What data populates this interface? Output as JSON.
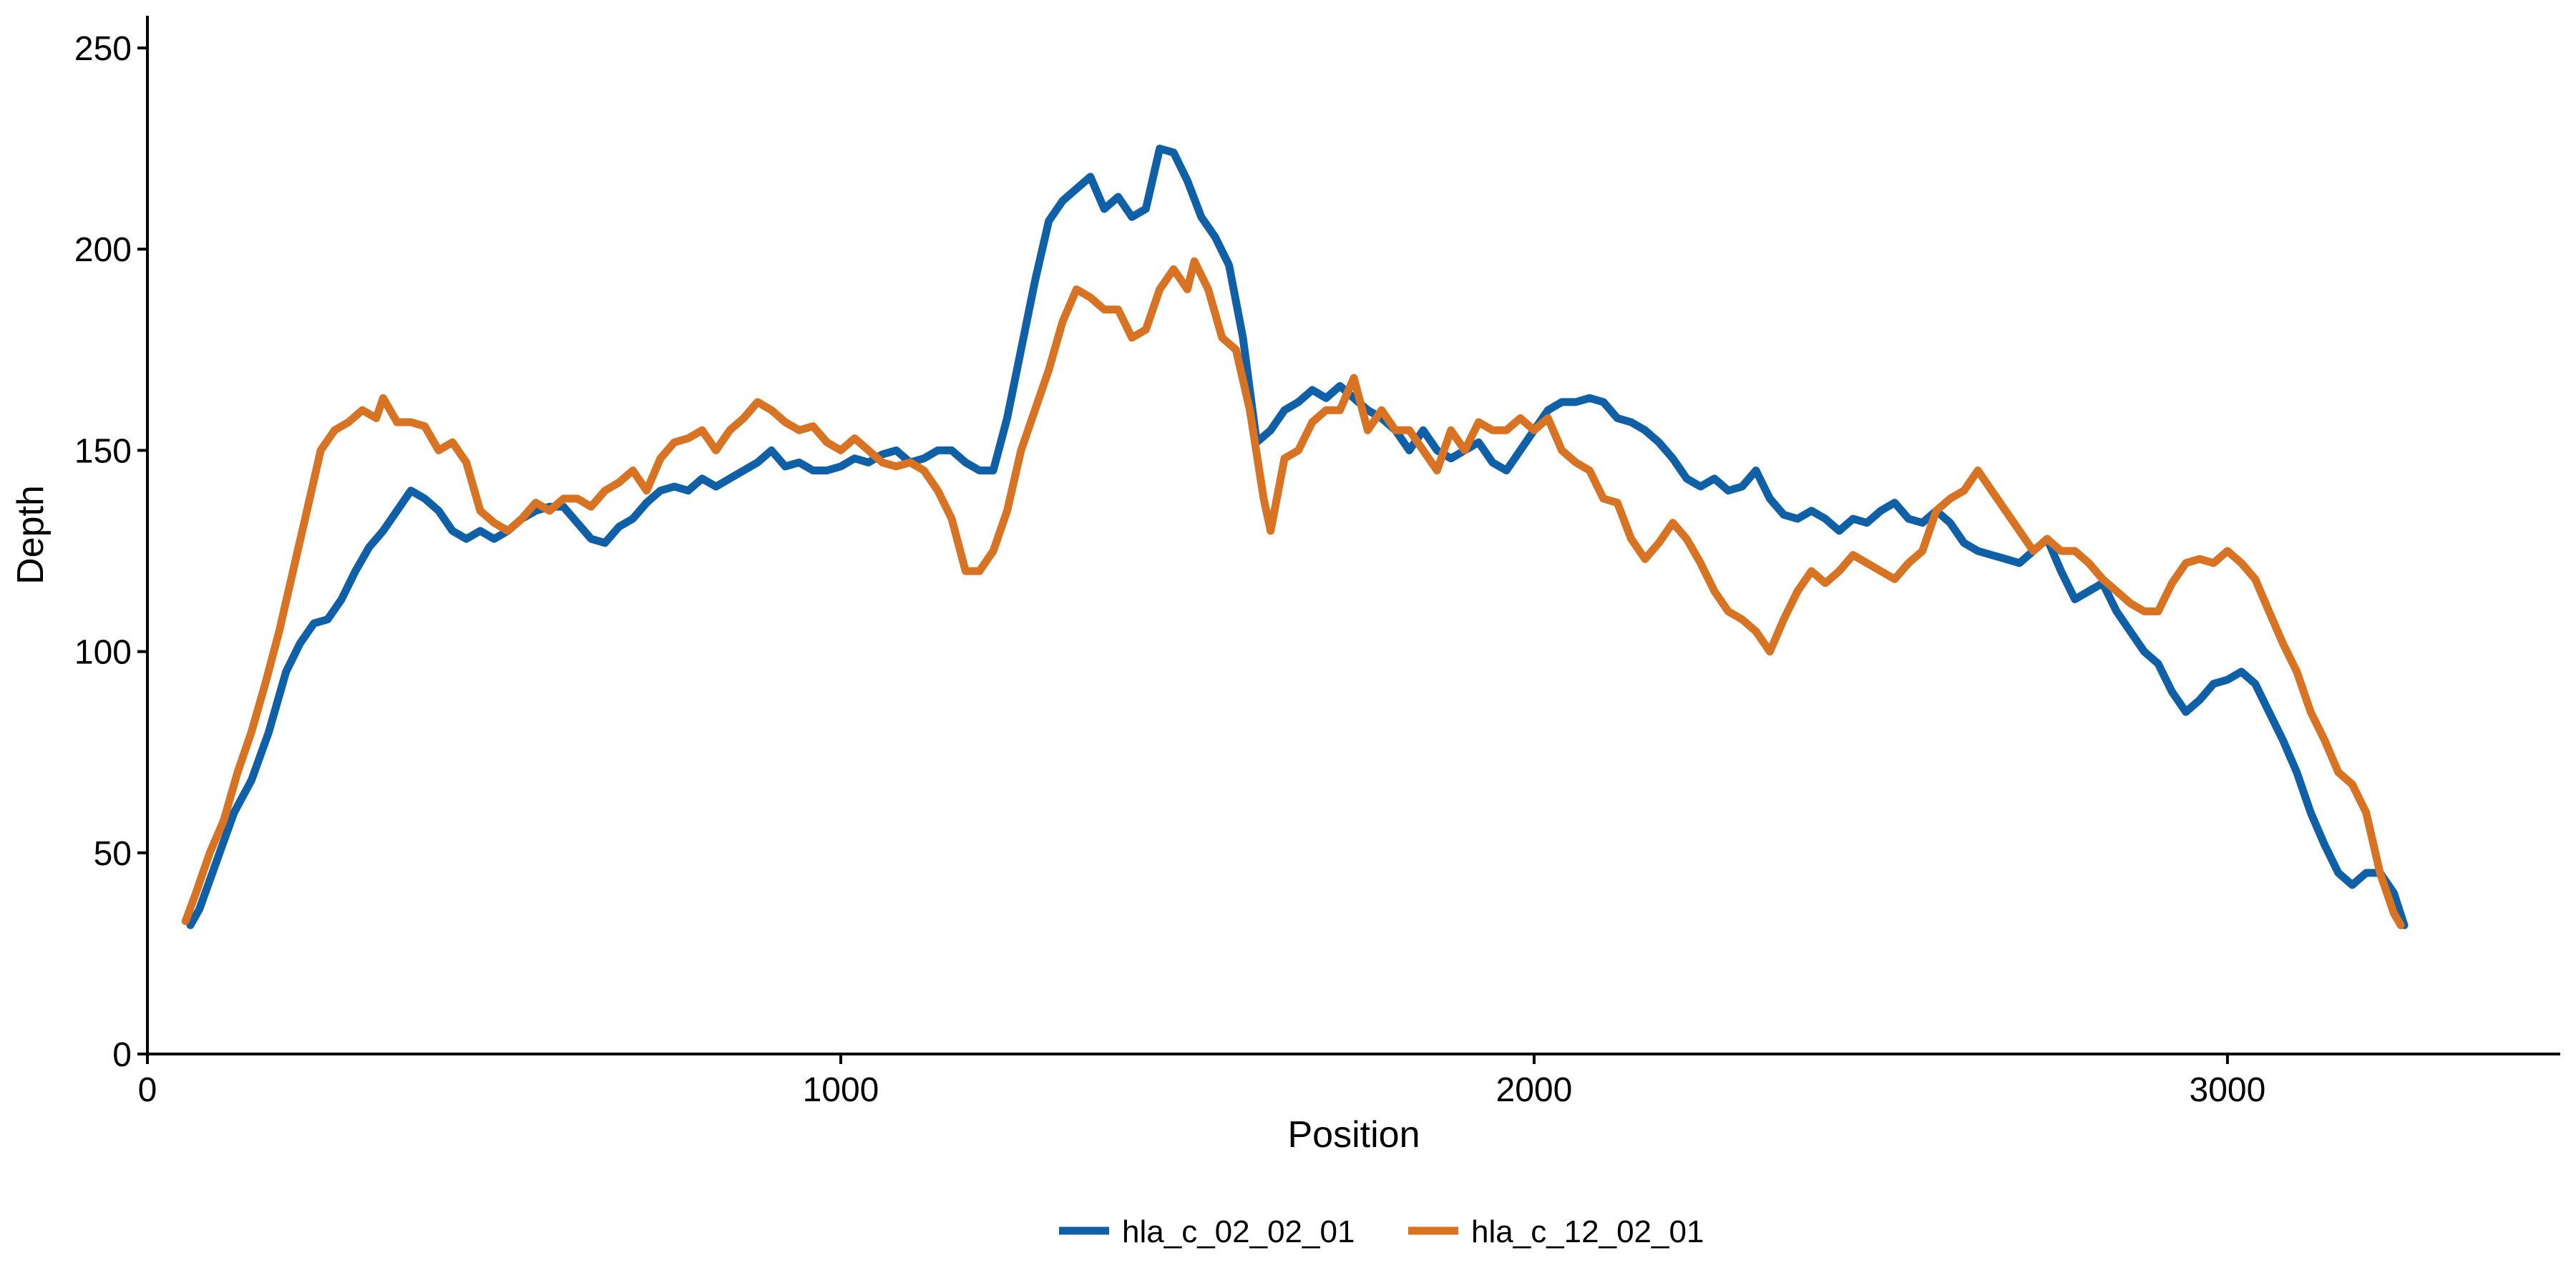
{
  "chart_data": {
    "type": "line",
    "xlabel": "Position",
    "ylabel": "Depth",
    "xlim": [
      0,
      3480
    ],
    "ylim": [
      0,
      258
    ],
    "xticks": [
      0,
      1000,
      2000,
      3000
    ],
    "xtick_labels": [
      "0",
      "1000",
      "2000",
      "3000"
    ],
    "yticks": [
      0,
      50,
      100,
      150,
      200,
      250
    ],
    "ytick_labels": [
      "0",
      "50",
      "100",
      "150",
      "200",
      "250"
    ],
    "grid": false,
    "legend_position": "bottom",
    "series": [
      {
        "name": "hla_c_02_02_01",
        "color": "#1060a8",
        "points": [
          [
            62,
            32
          ],
          [
            75,
            36
          ],
          [
            100,
            48
          ],
          [
            125,
            60
          ],
          [
            150,
            68
          ],
          [
            175,
            80
          ],
          [
            200,
            95
          ],
          [
            220,
            102
          ],
          [
            240,
            107
          ],
          [
            260,
            108
          ],
          [
            280,
            113
          ],
          [
            300,
            120
          ],
          [
            320,
            126
          ],
          [
            340,
            130
          ],
          [
            360,
            135
          ],
          [
            380,
            140
          ],
          [
            400,
            138
          ],
          [
            420,
            135
          ],
          [
            440,
            130
          ],
          [
            460,
            128
          ],
          [
            480,
            130
          ],
          [
            500,
            128
          ],
          [
            520,
            130
          ],
          [
            540,
            133
          ],
          [
            560,
            135
          ],
          [
            580,
            136
          ],
          [
            600,
            136
          ],
          [
            620,
            132
          ],
          [
            640,
            128
          ],
          [
            660,
            127
          ],
          [
            680,
            131
          ],
          [
            700,
            133
          ],
          [
            720,
            137
          ],
          [
            740,
            140
          ],
          [
            760,
            141
          ],
          [
            780,
            140
          ],
          [
            800,
            143
          ],
          [
            820,
            141
          ],
          [
            840,
            143
          ],
          [
            860,
            145
          ],
          [
            880,
            147
          ],
          [
            900,
            150
          ],
          [
            920,
            146
          ],
          [
            940,
            147
          ],
          [
            960,
            145
          ],
          [
            980,
            145
          ],
          [
            1000,
            146
          ],
          [
            1020,
            148
          ],
          [
            1040,
            147
          ],
          [
            1060,
            149
          ],
          [
            1080,
            150
          ],
          [
            1100,
            147
          ],
          [
            1120,
            148
          ],
          [
            1140,
            150
          ],
          [
            1160,
            150
          ],
          [
            1180,
            147
          ],
          [
            1200,
            145
          ],
          [
            1220,
            145
          ],
          [
            1240,
            158
          ],
          [
            1260,
            175
          ],
          [
            1280,
            192
          ],
          [
            1300,
            207
          ],
          [
            1320,
            212
          ],
          [
            1340,
            215
          ],
          [
            1360,
            218
          ],
          [
            1380,
            210
          ],
          [
            1400,
            213
          ],
          [
            1420,
            208
          ],
          [
            1440,
            210
          ],
          [
            1460,
            225
          ],
          [
            1480,
            224
          ],
          [
            1500,
            217
          ],
          [
            1520,
            208
          ],
          [
            1540,
            203
          ],
          [
            1560,
            196
          ],
          [
            1580,
            178
          ],
          [
            1600,
            152
          ],
          [
            1620,
            155
          ],
          [
            1640,
            160
          ],
          [
            1660,
            162
          ],
          [
            1680,
            165
          ],
          [
            1700,
            163
          ],
          [
            1720,
            166
          ],
          [
            1740,
            163
          ],
          [
            1760,
            160
          ],
          [
            1780,
            158
          ],
          [
            1800,
            155
          ],
          [
            1820,
            150
          ],
          [
            1840,
            155
          ],
          [
            1860,
            150
          ],
          [
            1880,
            148
          ],
          [
            1900,
            150
          ],
          [
            1920,
            152
          ],
          [
            1940,
            147
          ],
          [
            1960,
            145
          ],
          [
            1980,
            150
          ],
          [
            2000,
            155
          ],
          [
            2020,
            160
          ],
          [
            2040,
            162
          ],
          [
            2060,
            162
          ],
          [
            2080,
            163
          ],
          [
            2100,
            162
          ],
          [
            2120,
            158
          ],
          [
            2140,
            157
          ],
          [
            2160,
            155
          ],
          [
            2180,
            152
          ],
          [
            2200,
            148
          ],
          [
            2220,
            143
          ],
          [
            2240,
            141
          ],
          [
            2260,
            143
          ],
          [
            2280,
            140
          ],
          [
            2300,
            141
          ],
          [
            2320,
            145
          ],
          [
            2340,
            138
          ],
          [
            2360,
            134
          ],
          [
            2380,
            133
          ],
          [
            2400,
            135
          ],
          [
            2420,
            133
          ],
          [
            2440,
            130
          ],
          [
            2460,
            133
          ],
          [
            2480,
            132
          ],
          [
            2500,
            135
          ],
          [
            2520,
            137
          ],
          [
            2540,
            133
          ],
          [
            2560,
            132
          ],
          [
            2580,
            135
          ],
          [
            2600,
            132
          ],
          [
            2620,
            127
          ],
          [
            2640,
            125
          ],
          [
            2660,
            124
          ],
          [
            2680,
            123
          ],
          [
            2700,
            122
          ],
          [
            2720,
            125
          ],
          [
            2740,
            128
          ],
          [
            2760,
            120
          ],
          [
            2780,
            113
          ],
          [
            2800,
            115
          ],
          [
            2820,
            117
          ],
          [
            2840,
            110
          ],
          [
            2860,
            105
          ],
          [
            2880,
            100
          ],
          [
            2900,
            97
          ],
          [
            2920,
            90
          ],
          [
            2940,
            85
          ],
          [
            2960,
            88
          ],
          [
            2980,
            92
          ],
          [
            3000,
            93
          ],
          [
            3020,
            95
          ],
          [
            3040,
            92
          ],
          [
            3060,
            85
          ],
          [
            3080,
            78
          ],
          [
            3100,
            70
          ],
          [
            3120,
            60
          ],
          [
            3140,
            52
          ],
          [
            3160,
            45
          ],
          [
            3180,
            42
          ],
          [
            3200,
            45
          ],
          [
            3220,
            45
          ],
          [
            3240,
            40
          ],
          [
            3255,
            32
          ]
        ]
      },
      {
        "name": "hla_c_12_02_01",
        "color": "#d77322",
        "points": [
          [
            55,
            33
          ],
          [
            70,
            40
          ],
          [
            90,
            50
          ],
          [
            110,
            58
          ],
          [
            130,
            70
          ],
          [
            150,
            80
          ],
          [
            170,
            92
          ],
          [
            190,
            105
          ],
          [
            210,
            120
          ],
          [
            230,
            135
          ],
          [
            250,
            150
          ],
          [
            270,
            155
          ],
          [
            290,
            157
          ],
          [
            310,
            160
          ],
          [
            330,
            158
          ],
          [
            340,
            163
          ],
          [
            360,
            157
          ],
          [
            380,
            157
          ],
          [
            400,
            156
          ],
          [
            420,
            150
          ],
          [
            440,
            152
          ],
          [
            460,
            147
          ],
          [
            480,
            135
          ],
          [
            500,
            132
          ],
          [
            520,
            130
          ],
          [
            540,
            133
          ],
          [
            560,
            137
          ],
          [
            580,
            135
          ],
          [
            600,
            138
          ],
          [
            620,
            138
          ],
          [
            640,
            136
          ],
          [
            660,
            140
          ],
          [
            680,
            142
          ],
          [
            700,
            145
          ],
          [
            720,
            140
          ],
          [
            740,
            148
          ],
          [
            760,
            152
          ],
          [
            780,
            153
          ],
          [
            800,
            155
          ],
          [
            820,
            150
          ],
          [
            840,
            155
          ],
          [
            860,
            158
          ],
          [
            880,
            162
          ],
          [
            900,
            160
          ],
          [
            920,
            157
          ],
          [
            940,
            155
          ],
          [
            960,
            156
          ],
          [
            980,
            152
          ],
          [
            1000,
            150
          ],
          [
            1020,
            153
          ],
          [
            1040,
            150
          ],
          [
            1060,
            147
          ],
          [
            1080,
            146
          ],
          [
            1100,
            147
          ],
          [
            1120,
            145
          ],
          [
            1140,
            140
          ],
          [
            1160,
            133
          ],
          [
            1180,
            120
          ],
          [
            1200,
            120
          ],
          [
            1220,
            125
          ],
          [
            1240,
            135
          ],
          [
            1260,
            150
          ],
          [
            1280,
            160
          ],
          [
            1300,
            170
          ],
          [
            1320,
            182
          ],
          [
            1340,
            190
          ],
          [
            1360,
            188
          ],
          [
            1380,
            185
          ],
          [
            1400,
            185
          ],
          [
            1420,
            178
          ],
          [
            1440,
            180
          ],
          [
            1460,
            190
          ],
          [
            1480,
            195
          ],
          [
            1500,
            190
          ],
          [
            1510,
            197
          ],
          [
            1530,
            190
          ],
          [
            1550,
            178
          ],
          [
            1570,
            175
          ],
          [
            1590,
            160
          ],
          [
            1610,
            138
          ],
          [
            1620,
            130
          ],
          [
            1640,
            148
          ],
          [
            1660,
            150
          ],
          [
            1680,
            157
          ],
          [
            1700,
            160
          ],
          [
            1720,
            160
          ],
          [
            1740,
            168
          ],
          [
            1760,
            155
          ],
          [
            1780,
            160
          ],
          [
            1800,
            155
          ],
          [
            1820,
            155
          ],
          [
            1840,
            150
          ],
          [
            1860,
            145
          ],
          [
            1880,
            155
          ],
          [
            1900,
            150
          ],
          [
            1920,
            157
          ],
          [
            1940,
            155
          ],
          [
            1960,
            155
          ],
          [
            1980,
            158
          ],
          [
            2000,
            155
          ],
          [
            2020,
            158
          ],
          [
            2040,
            150
          ],
          [
            2060,
            147
          ],
          [
            2080,
            145
          ],
          [
            2100,
            138
          ],
          [
            2120,
            137
          ],
          [
            2140,
            128
          ],
          [
            2160,
            123
          ],
          [
            2180,
            127
          ],
          [
            2200,
            132
          ],
          [
            2220,
            128
          ],
          [
            2240,
            122
          ],
          [
            2260,
            115
          ],
          [
            2280,
            110
          ],
          [
            2300,
            108
          ],
          [
            2320,
            105
          ],
          [
            2340,
            100
          ],
          [
            2360,
            108
          ],
          [
            2380,
            115
          ],
          [
            2400,
            120
          ],
          [
            2420,
            117
          ],
          [
            2440,
            120
          ],
          [
            2460,
            124
          ],
          [
            2480,
            122
          ],
          [
            2500,
            120
          ],
          [
            2520,
            118
          ],
          [
            2540,
            122
          ],
          [
            2560,
            125
          ],
          [
            2580,
            135
          ],
          [
            2600,
            138
          ],
          [
            2620,
            140
          ],
          [
            2640,
            145
          ],
          [
            2660,
            140
          ],
          [
            2680,
            135
          ],
          [
            2700,
            130
          ],
          [
            2720,
            125
          ],
          [
            2740,
            128
          ],
          [
            2760,
            125
          ],
          [
            2780,
            125
          ],
          [
            2800,
            122
          ],
          [
            2820,
            118
          ],
          [
            2840,
            115
          ],
          [
            2860,
            112
          ],
          [
            2880,
            110
          ],
          [
            2900,
            110
          ],
          [
            2920,
            117
          ],
          [
            2940,
            122
          ],
          [
            2960,
            123
          ],
          [
            2980,
            122
          ],
          [
            3000,
            125
          ],
          [
            3020,
            122
          ],
          [
            3040,
            118
          ],
          [
            3060,
            110
          ],
          [
            3080,
            102
          ],
          [
            3100,
            95
          ],
          [
            3120,
            85
          ],
          [
            3140,
            78
          ],
          [
            3160,
            70
          ],
          [
            3180,
            67
          ],
          [
            3200,
            60
          ],
          [
            3220,
            45
          ],
          [
            3240,
            35
          ],
          [
            3250,
            32
          ]
        ]
      }
    ]
  }
}
